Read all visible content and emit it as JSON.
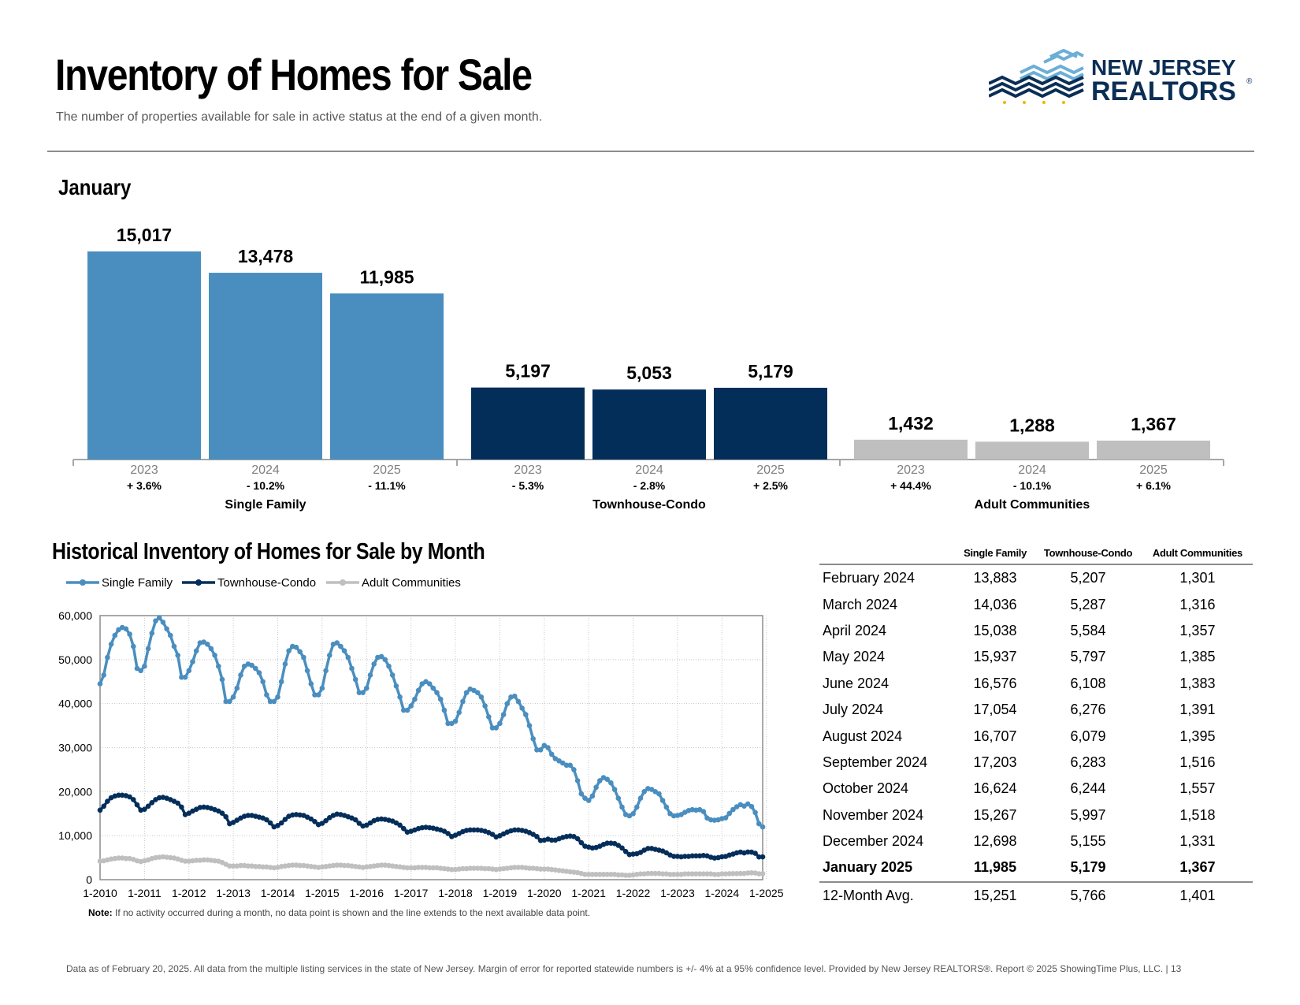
{
  "page": {
    "title": "Inventory of Homes for Sale",
    "subtitle": "The number of properties available for sale in active status at the end of a given month.",
    "logo": {
      "line1": "NEW JERSEY",
      "line2": "REALTORS",
      "mark": "®"
    },
    "month_heading": "January",
    "hist_heading": "Historical Inventory of Homes for Sale by Month",
    "note_label": "Note:",
    "note_text": " If no activity occurred during a month, no data point is shown and the line extends to the next available data point.",
    "footer": "Data as of February 20, 2025. All data from the multiple listing services in the state of New Jersey. Margin of error for reported statewide numbers is +/- 4% at a 95% confidence level. Provided by New Jersey REALTORS®. Report © 2025 ShowingTime Plus, LLC. | 13"
  },
  "colors": {
    "single_family": "#4A8EBF",
    "townhouse": "#042E5A",
    "adult": "#BFBFBF",
    "axis": "#A6A6A6"
  },
  "chart_data": [
    {
      "type": "bar",
      "title": "January",
      "groups": [
        {
          "name": "Single Family",
          "color": "#4A8EBF",
          "bars": [
            {
              "year": "2023",
              "value": 15017,
              "label": "15,017",
              "change": "+ 3.6%"
            },
            {
              "year": "2024",
              "value": 13478,
              "label": "13,478",
              "change": "- 10.2%"
            },
            {
              "year": "2025",
              "value": 11985,
              "label": "11,985",
              "change": "- 11.1%"
            }
          ]
        },
        {
          "name": "Townhouse-Condo",
          "color": "#042E5A",
          "bars": [
            {
              "year": "2023",
              "value": 5197,
              "label": "5,197",
              "change": "- 5.3%"
            },
            {
              "year": "2024",
              "value": 5053,
              "label": "5,053",
              "change": "- 2.8%"
            },
            {
              "year": "2025",
              "value": 5179,
              "label": "5,179",
              "change": "+ 2.5%"
            }
          ]
        },
        {
          "name": "Adult Communities",
          "color": "#BFBFBF",
          "bars": [
            {
              "year": "2023",
              "value": 1432,
              "label": "1,432",
              "change": "+ 44.4%"
            },
            {
              "year": "2024",
              "value": 1288,
              "label": "1,288",
              "change": "- 10.1%"
            },
            {
              "year": "2025",
              "value": 1367,
              "label": "1,367",
              "change": "+ 6.1%"
            }
          ]
        }
      ]
    },
    {
      "type": "line",
      "title": "Historical Inventory of Homes for Sale by Month",
      "ylim": [
        0,
        60000
      ],
      "yticks": [
        0,
        10000,
        20000,
        30000,
        40000,
        50000,
        60000
      ],
      "ytick_labels": [
        "0",
        "10,000",
        "20,000",
        "30,000",
        "40,000",
        "50,000",
        "60,000"
      ],
      "x_start": "2010-01",
      "x_end": "2025-01",
      "xtick_labels": [
        "1-2010",
        "1-2011",
        "1-2012",
        "1-2013",
        "1-2014",
        "1-2015",
        "1-2016",
        "1-2017",
        "1-2018",
        "1-2019",
        "1-2020",
        "1-2021",
        "1-2022",
        "1-2023",
        "1-2024",
        "1-2025"
      ],
      "grid": true,
      "legend": "top-left",
      "series": [
        {
          "name": "Single Family",
          "color": "#4A8EBF",
          "values": [
            44500,
            46500,
            50500,
            53500,
            55500,
            56800,
            57300,
            57000,
            55800,
            53000,
            48000,
            47500,
            48500,
            52500,
            56000,
            58800,
            59500,
            58500,
            57000,
            55500,
            53000,
            51000,
            46000,
            46000,
            47500,
            49500,
            52000,
            53800,
            54000,
            53500,
            52500,
            51000,
            48500,
            45500,
            40500,
            40500,
            41500,
            43500,
            46500,
            48500,
            49000,
            48700,
            48000,
            47000,
            45000,
            42000,
            40500,
            40500,
            41500,
            45000,
            49000,
            52000,
            53000,
            52800,
            51800,
            50500,
            47500,
            44500,
            42000,
            42000,
            43500,
            47500,
            51000,
            53500,
            53800,
            53000,
            52000,
            50500,
            48000,
            45500,
            42500,
            42500,
            43500,
            46500,
            49000,
            50500,
            50700,
            50000,
            48500,
            46500,
            44000,
            41500,
            38500,
            38500,
            39500,
            41000,
            43000,
            44500,
            45000,
            44500,
            43500,
            42500,
            41000,
            38500,
            35500,
            35500,
            36000,
            38000,
            40500,
            42500,
            43300,
            43000,
            42500,
            41500,
            39500,
            37000,
            34500,
            34500,
            35500,
            37500,
            40000,
            41500,
            41700,
            40500,
            39000,
            37500,
            35000,
            32000,
            29500,
            29500,
            30500,
            30000,
            28500,
            27500,
            27000,
            26500,
            26000,
            26000,
            25000,
            22500,
            19500,
            18500,
            18000,
            19000,
            21000,
            22500,
            23200,
            22800,
            22000,
            20500,
            18500,
            16500,
            14800,
            14500,
            15000,
            16500,
            18500,
            20000,
            20700,
            20500,
            20000,
            19500,
            18000,
            16500,
            15000,
            14500,
            14600,
            14800,
            15300,
            15700,
            15900,
            15800,
            15900,
            15500,
            14000,
            13600,
            13500,
            13600,
            13883,
            14036,
            15038,
            15937,
            16576,
            17054,
            16707,
            17203,
            16624,
            15267,
            12698,
            11985
          ]
        },
        {
          "name": "Townhouse-Condo",
          "color": "#042E5A",
          "values": [
            15800,
            16700,
            17800,
            18600,
            19000,
            19200,
            19200,
            19100,
            18800,
            18200,
            17000,
            15800,
            16000,
            16700,
            17500,
            18200,
            18600,
            18700,
            18500,
            18200,
            17800,
            17400,
            16500,
            14800,
            15100,
            15600,
            16000,
            16400,
            16500,
            16400,
            16200,
            15900,
            15600,
            15100,
            14300,
            12700,
            13000,
            13500,
            14000,
            14400,
            14600,
            14600,
            14400,
            14200,
            14000,
            13600,
            12900,
            12000,
            12300,
            12900,
            13700,
            14400,
            14700,
            14800,
            14700,
            14600,
            14200,
            13800,
            13200,
            12500,
            12800,
            13400,
            14100,
            14600,
            14900,
            14800,
            14600,
            14300,
            14000,
            13600,
            12800,
            12200,
            12400,
            12900,
            13400,
            13700,
            13800,
            13700,
            13500,
            13300,
            12900,
            12400,
            11600,
            10800,
            11000,
            11300,
            11600,
            11800,
            11900,
            11800,
            11700,
            11500,
            11300,
            11000,
            10500,
            9800,
            10100,
            10500,
            10900,
            11200,
            11300,
            11300,
            11300,
            11200,
            11000,
            10700,
            10300,
            9700,
            10000,
            10400,
            10800,
            11100,
            11300,
            11300,
            11200,
            11000,
            10700,
            10300,
            9800,
            8900,
            9000,
            9200,
            9000,
            9000,
            9300,
            9600,
            9800,
            9900,
            9800,
            9300,
            8400,
            7600,
            7400,
            7200,
            7300,
            7600,
            8000,
            8300,
            8300,
            8200,
            7800,
            7200,
            6400,
            5700,
            5800,
            5900,
            6200,
            6700,
            7100,
            7100,
            6900,
            6700,
            6500,
            6100,
            5600,
            5300,
            5300,
            5200,
            5300,
            5300,
            5400,
            5400,
            5400,
            5500,
            5400,
            5100,
            4900,
            5000,
            5207,
            5287,
            5584,
            5797,
            6108,
            6276,
            6079,
            6283,
            6244,
            5997,
            5155,
            5179
          ]
        },
        {
          "name": "Adult Communities",
          "color": "#BFBFBF",
          "values": [
            4200,
            4300,
            4500,
            4700,
            4800,
            4900,
            4900,
            4800,
            4800,
            4600,
            4300,
            4100,
            4300,
            4500,
            4800,
            5000,
            5100,
            5200,
            5100,
            5000,
            4900,
            4700,
            4400,
            4200,
            4200,
            4300,
            4400,
            4400,
            4500,
            4500,
            4400,
            4300,
            4200,
            3900,
            3500,
            3100,
            3100,
            3100,
            3200,
            3200,
            3100,
            3100,
            3000,
            3000,
            2900,
            2900,
            2800,
            2700,
            2800,
            3000,
            3100,
            3200,
            3300,
            3300,
            3200,
            3200,
            3100,
            3000,
            2900,
            2800,
            2900,
            3000,
            3100,
            3200,
            3300,
            3300,
            3200,
            3200,
            3100,
            3000,
            2900,
            2800,
            2900,
            3000,
            3100,
            3200,
            3300,
            3300,
            3200,
            3100,
            3000,
            2900,
            2800,
            2700,
            2700,
            2700,
            2800,
            2800,
            2800,
            2700,
            2700,
            2700,
            2600,
            2500,
            2400,
            2300,
            2300,
            2400,
            2500,
            2500,
            2600,
            2600,
            2600,
            2600,
            2500,
            2500,
            2400,
            2300,
            2400,
            2500,
            2600,
            2700,
            2800,
            2800,
            2800,
            2700,
            2600,
            2600,
            2500,
            2400,
            2400,
            2400,
            2300,
            2200,
            2100,
            2000,
            1900,
            1800,
            1700,
            1600,
            1400,
            1200,
            1200,
            1200,
            1200,
            1200,
            1200,
            1200,
            1200,
            1200,
            1100,
            1100,
            1000,
            1000,
            1100,
            1200,
            1300,
            1300,
            1400,
            1400,
            1400,
            1400,
            1300,
            1300,
            1200,
            1200,
            1200,
            1200,
            1300,
            1300,
            1300,
            1300,
            1300,
            1300,
            1300,
            1300,
            1200,
            1200,
            1301,
            1316,
            1357,
            1385,
            1383,
            1391,
            1395,
            1516,
            1557,
            1518,
            1331,
            1367
          ]
        }
      ]
    },
    {
      "type": "table",
      "columns": [
        "",
        "Single Family",
        "Townhouse-Condo",
        "Adult Communities"
      ],
      "rows": [
        [
          "February 2024",
          "13,883",
          "5,207",
          "1,301"
        ],
        [
          "March 2024",
          "14,036",
          "5,287",
          "1,316"
        ],
        [
          "April 2024",
          "15,038",
          "5,584",
          "1,357"
        ],
        [
          "May 2024",
          "15,937",
          "5,797",
          "1,385"
        ],
        [
          "June 2024",
          "16,576",
          "6,108",
          "1,383"
        ],
        [
          "July 2024",
          "17,054",
          "6,276",
          "1,391"
        ],
        [
          "August 2024",
          "16,707",
          "6,079",
          "1,395"
        ],
        [
          "September 2024",
          "17,203",
          "6,283",
          "1,516"
        ],
        [
          "October 2024",
          "16,624",
          "6,244",
          "1,557"
        ],
        [
          "November 2024",
          "15,267",
          "5,997",
          "1,518"
        ],
        [
          "December 2024",
          "12,698",
          "5,155",
          "1,331"
        ],
        [
          "January 2025",
          "11,985",
          "5,179",
          "1,367"
        ]
      ],
      "bold_row": 11,
      "summary_row": [
        "12-Month Avg.",
        "15,251",
        "5,766",
        "1,401"
      ]
    }
  ]
}
